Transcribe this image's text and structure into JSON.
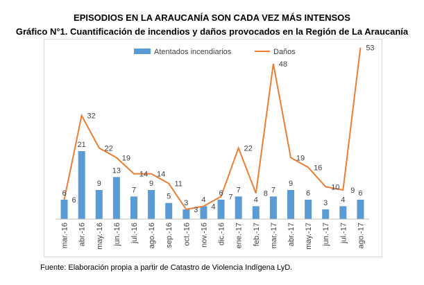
{
  "header": {
    "title": "EPISODIOS EN LA ARAUCANÍA SON CADA VEZ MÁS INTENSOS",
    "subtitle": "Gráfico N°1. Cuantificación de incendios y daños provocados en la Región de La Araucanía"
  },
  "footer": {
    "source": "Fuente: Elaboración propia a partir de Catastro  de Violencia Indígena LyD."
  },
  "colors": {
    "bars": "#5b9bd5",
    "line": "#ed7d31"
  },
  "chart_data": {
    "type": "bar",
    "title": "",
    "xlabel": "",
    "ylabel": "",
    "categories": [
      "mar.-16",
      "abr.-16",
      "may.-16",
      "jun.-16",
      "jul.-16",
      "ago.-16",
      "sep.-16",
      "oct.-16",
      "nov.-16",
      "dic.-16",
      "ene.-17",
      "feb.-17",
      "mar.-17",
      "abr.-17",
      "may.-17",
      "jun.-17",
      "jul.-17",
      "ago.-17"
    ],
    "series": [
      {
        "name": "Atentados incendiarios",
        "type": "bar",
        "values": [
          6,
          21,
          9,
          13,
          7,
          9,
          5,
          3,
          4,
          6,
          7,
          4,
          7,
          9,
          6,
          3,
          4,
          6
        ]
      },
      {
        "name": "Daños",
        "type": "line",
        "values": [
          6,
          32,
          22,
          19,
          14,
          14,
          11,
          3,
          4,
          7,
          22,
          8,
          48,
          19,
          16,
          10,
          9,
          53
        ]
      }
    ],
    "ylim": [
      0,
      60
    ],
    "grid": false,
    "legend": "top"
  }
}
